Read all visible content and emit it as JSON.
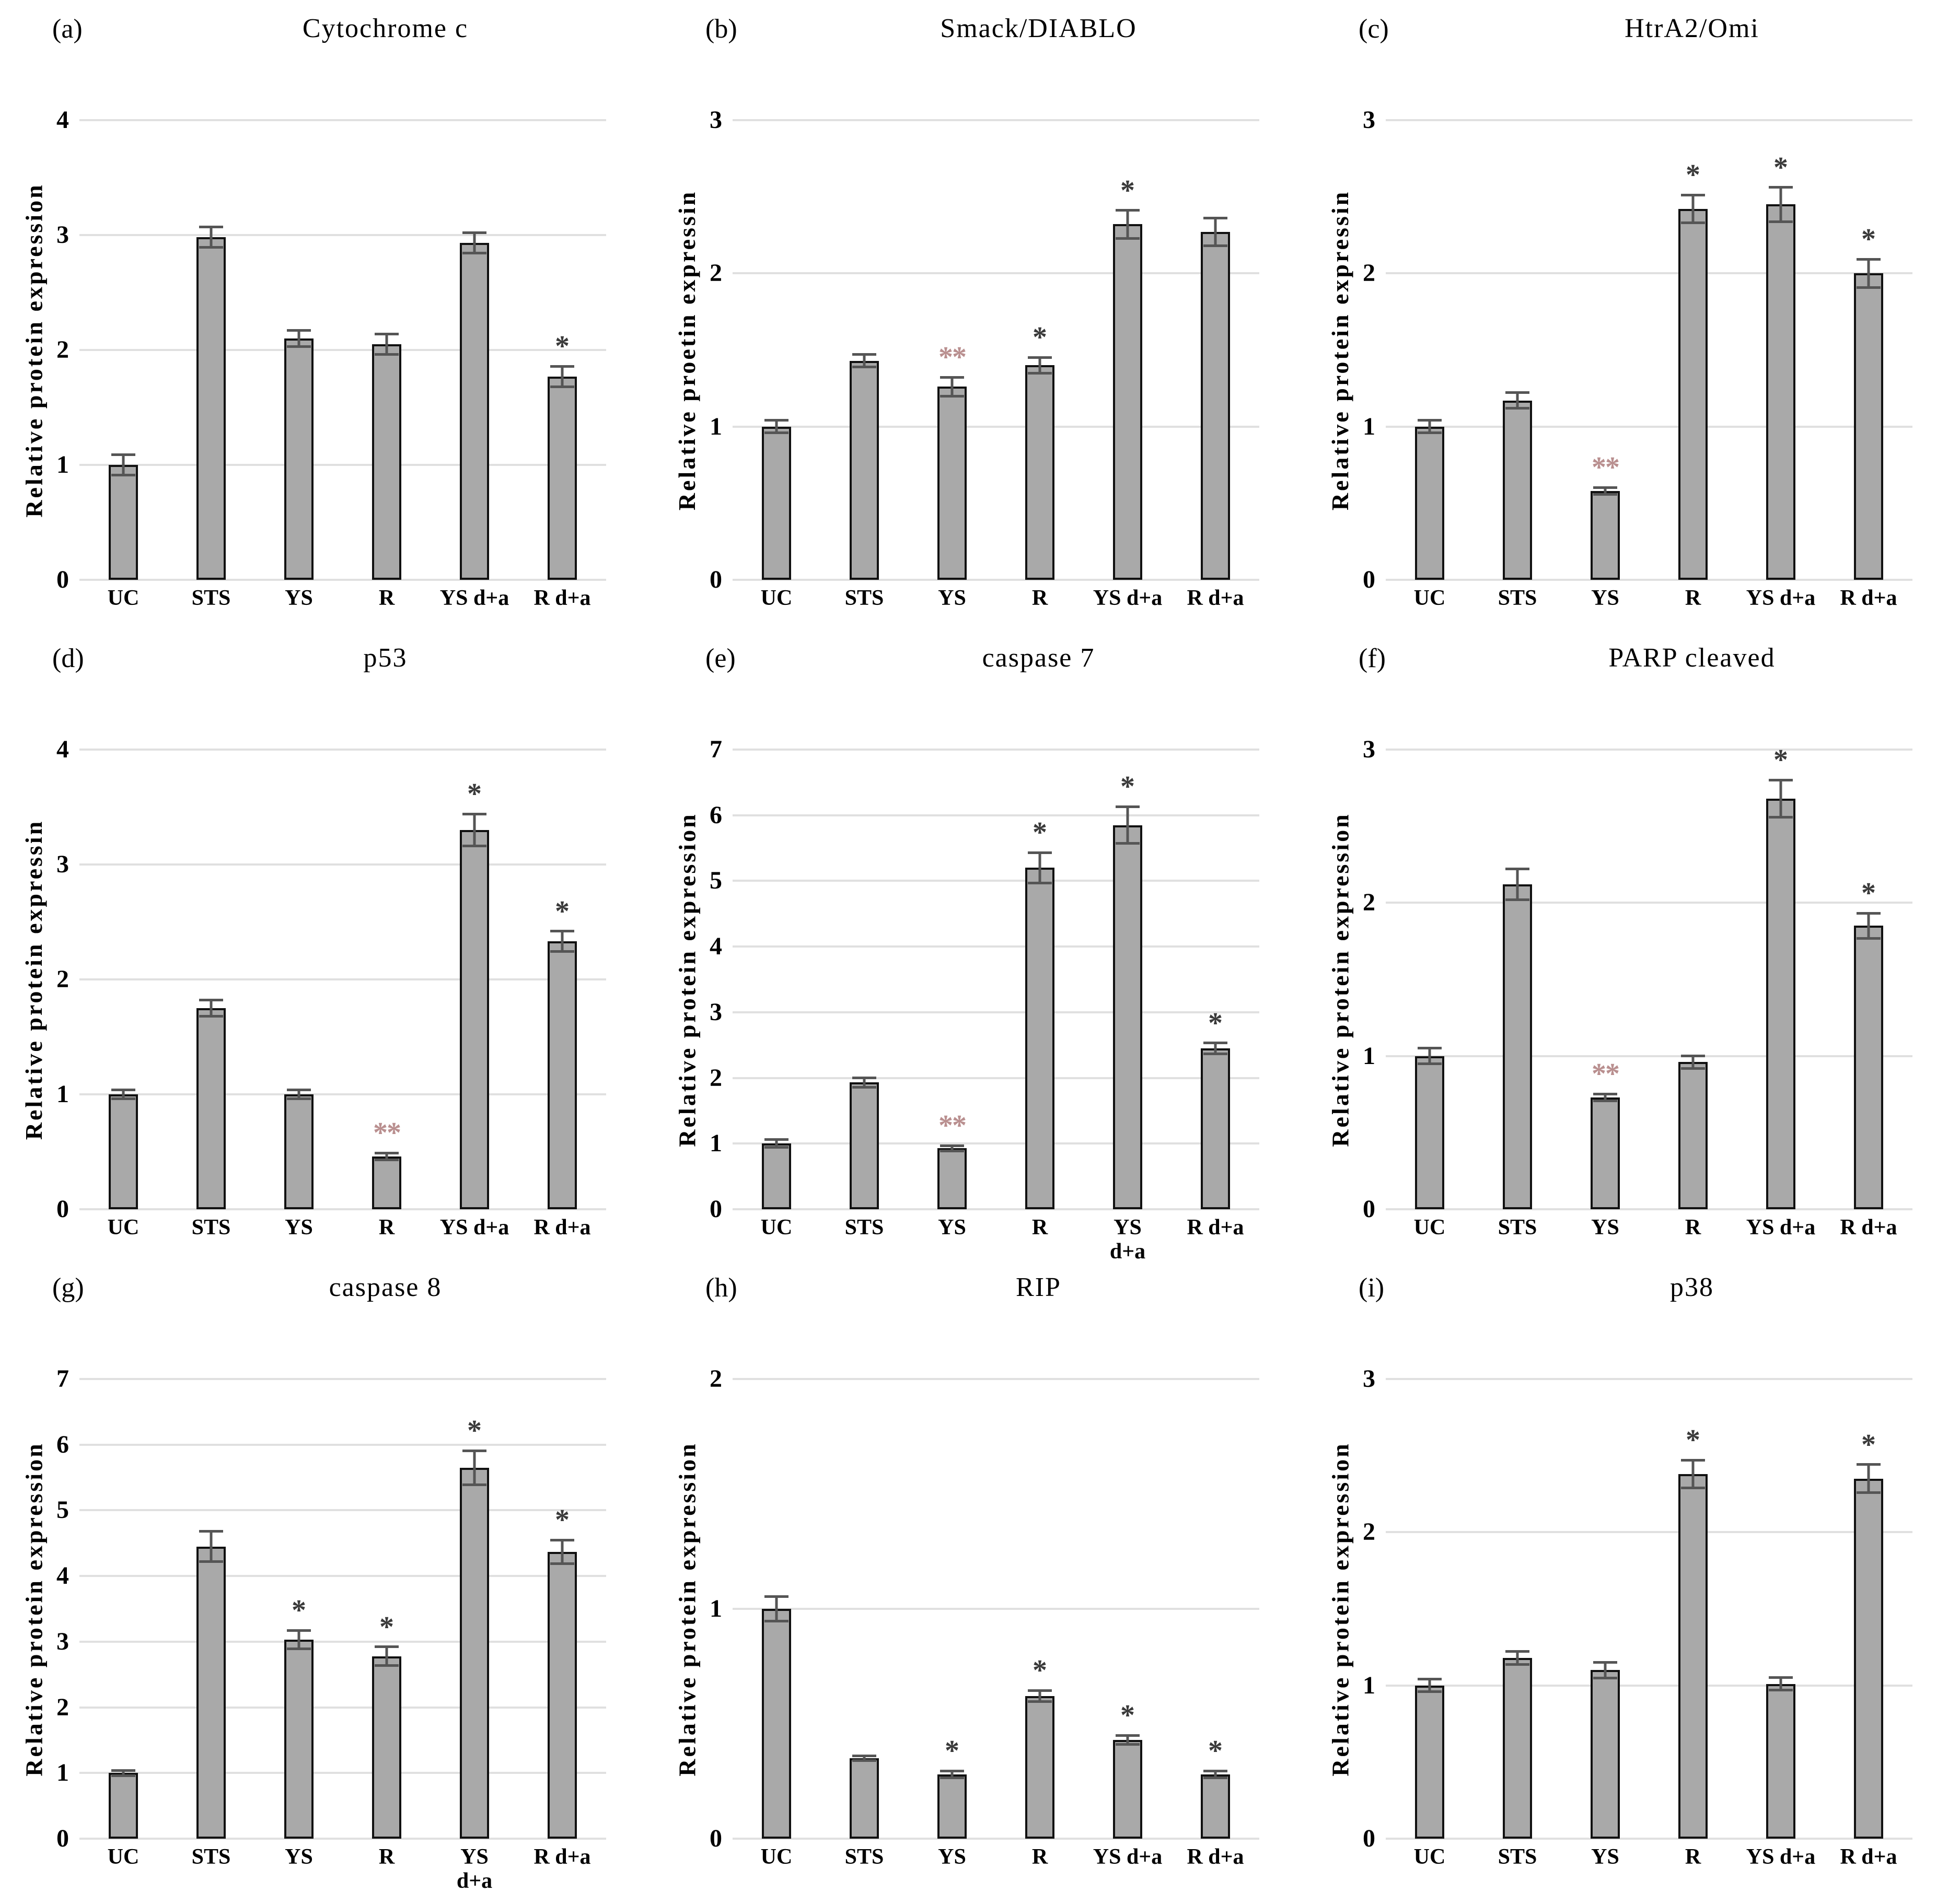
{
  "figure_caption_letters": [
    "(a)",
    "(b)",
    "(c)",
    "(d)",
    "(e)",
    "(f)",
    "(g)",
    "(h)",
    "(i)"
  ],
  "style": {
    "bar_fill": "#a9a9a9",
    "bar_border": "#111111",
    "grid_color": "#e0e0e0",
    "error_color": "#555555",
    "star_color": "#3a3a3a",
    "double_star_color": "#b98f8f",
    "background": "#ffffff"
  },
  "chart_data": [
    {
      "type": "bar",
      "panel_label": "(a)",
      "title": "Cytochrome  c",
      "ylabel": "Relative  protein  expression",
      "ylim": [
        0,
        4
      ],
      "yticks": [
        0,
        1,
        2,
        3,
        4
      ],
      "grid": true,
      "legend": "none",
      "categories": [
        "UC",
        "STS",
        "YS",
        "R",
        "YS d+a",
        "R d+a"
      ],
      "values": [
        1.0,
        2.98,
        2.1,
        2.05,
        2.93,
        1.77
      ],
      "errors": [
        0.1,
        0.1,
        0.08,
        0.1,
        0.1,
        0.1
      ],
      "significance": [
        "",
        "",
        "",
        "",
        "",
        "*"
      ]
    },
    {
      "type": "bar",
      "panel_label": "(b)",
      "title": "Smack/DIABLO",
      "ylabel": "Relative  proetin  expressin",
      "ylim": [
        0,
        3
      ],
      "yticks": [
        0,
        1,
        2,
        3
      ],
      "grid": true,
      "legend": "none",
      "categories": [
        "UC",
        "STS",
        "YS",
        "R",
        "YS d+a",
        "R d+a"
      ],
      "values": [
        1.0,
        1.43,
        1.26,
        1.4,
        2.32,
        2.27
      ],
      "errors": [
        0.05,
        0.05,
        0.07,
        0.06,
        0.1,
        0.1
      ],
      "significance": [
        "",
        "",
        "**",
        "*",
        "*",
        ""
      ]
    },
    {
      "type": "bar",
      "panel_label": "(c)",
      "title": "HtrA2/Omi",
      "ylabel": "Relative  protein  expressin",
      "ylim": [
        0,
        3
      ],
      "yticks": [
        0,
        1,
        2,
        3
      ],
      "grid": true,
      "legend": "none",
      "categories": [
        "UC",
        "STS",
        "YS",
        "R",
        "YS d+a",
        "R d+a"
      ],
      "values": [
        1.0,
        1.17,
        0.58,
        2.42,
        2.45,
        2.0
      ],
      "errors": [
        0.05,
        0.06,
        0.03,
        0.1,
        0.12,
        0.1
      ],
      "significance": [
        "",
        "",
        "**",
        "*",
        "*",
        "*"
      ]
    },
    {
      "type": "bar",
      "panel_label": "(d)",
      "title": "p53",
      "ylabel": "Relative  protein  expressin",
      "ylim": [
        0,
        4
      ],
      "yticks": [
        0,
        1,
        2,
        3,
        4
      ],
      "grid": true,
      "legend": "none",
      "categories": [
        "UC",
        "STS",
        "YS",
        "R",
        "YS d+a",
        "R d+a"
      ],
      "values": [
        1.0,
        1.75,
        1.0,
        0.46,
        3.3,
        2.33
      ],
      "errors": [
        0.05,
        0.08,
        0.05,
        0.04,
        0.15,
        0.1
      ],
      "significance": [
        "",
        "",
        "",
        "**",
        "*",
        "*"
      ]
    },
    {
      "type": "bar",
      "panel_label": "(e)",
      "title": "caspase 7",
      "ylabel": "Relative  protein  expression",
      "ylim": [
        0,
        7
      ],
      "yticks": [
        0,
        1,
        2,
        3,
        4,
        5,
        6,
        7
      ],
      "grid": true,
      "legend": "none",
      "categories": [
        "UC",
        "STS",
        "YS",
        "R",
        "YS\nd+a",
        "R d+a"
      ],
      "values": [
        1.0,
        1.93,
        0.93,
        5.2,
        5.85,
        2.45
      ],
      "errors": [
        0.08,
        0.09,
        0.06,
        0.25,
        0.3,
        0.1
      ],
      "significance": [
        "",
        "",
        "**",
        "*",
        "*",
        "*"
      ]
    },
    {
      "type": "bar",
      "panel_label": "(f)",
      "title": "PARP cleaved",
      "ylabel": "Relative  protein  expression",
      "ylim": [
        0,
        3
      ],
      "yticks": [
        0,
        1,
        2,
        3
      ],
      "grid": true,
      "legend": "none",
      "categories": [
        "UC",
        "STS",
        "YS",
        "R",
        "YS d+a",
        "R d+a"
      ],
      "values": [
        1.0,
        2.12,
        0.73,
        0.96,
        2.68,
        1.85
      ],
      "errors": [
        0.06,
        0.11,
        0.03,
        0.05,
        0.13,
        0.09
      ],
      "significance": [
        "",
        "",
        "**",
        "",
        "*",
        "*"
      ]
    },
    {
      "type": "bar",
      "panel_label": "(g)",
      "title": "caspase 8",
      "ylabel": "Relative  protein  expression",
      "ylim": [
        0,
        7
      ],
      "yticks": [
        0,
        1,
        2,
        3,
        4,
        5,
        6,
        7
      ],
      "grid": true,
      "legend": "none",
      "categories": [
        "UC",
        "STS",
        "YS",
        "R",
        "YS\nd+a",
        "R d+a"
      ],
      "values": [
        1.0,
        4.45,
        3.03,
        2.78,
        5.65,
        4.37
      ],
      "errors": [
        0.06,
        0.25,
        0.16,
        0.16,
        0.28,
        0.2
      ],
      "significance": [
        "",
        "",
        "*",
        "*",
        "*",
        "*"
      ]
    },
    {
      "type": "bar",
      "panel_label": "(h)",
      "title": "RIP",
      "ylabel": "Relative  protein  expression",
      "ylim": [
        0,
        2
      ],
      "yticks": [
        0,
        1,
        2
      ],
      "grid": true,
      "legend": "none",
      "categories": [
        "UC",
        "STS",
        "YS",
        "R",
        "YS d+a",
        "R d+a"
      ],
      "values": [
        1.0,
        0.35,
        0.28,
        0.62,
        0.43,
        0.28
      ],
      "errors": [
        0.06,
        0.015,
        0.02,
        0.03,
        0.025,
        0.02
      ],
      "significance": [
        "",
        "",
        "*",
        "*",
        "*",
        "*"
      ]
    },
    {
      "type": "bar",
      "panel_label": "(i)",
      "title": "p38",
      "ylabel": "Relative  protein  expression",
      "ylim": [
        0,
        3
      ],
      "yticks": [
        0,
        1,
        2,
        3
      ],
      "grid": true,
      "legend": "none",
      "categories": [
        "UC",
        "STS",
        "YS",
        "R",
        "YS d+a",
        "R d+a"
      ],
      "values": [
        1.0,
        1.18,
        1.1,
        2.38,
        1.01,
        2.35
      ],
      "errors": [
        0.05,
        0.05,
        0.06,
        0.1,
        0.05,
        0.1
      ],
      "significance": [
        "",
        "",
        "",
        "*",
        "",
        "*"
      ]
    }
  ]
}
